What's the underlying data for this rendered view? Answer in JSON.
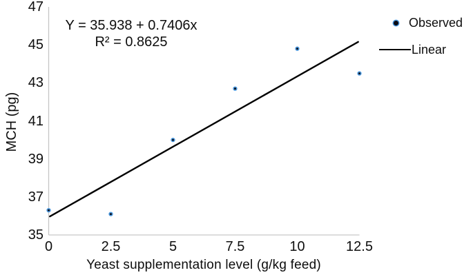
{
  "chart_data": {
    "type": "scatter",
    "title": "",
    "xlabel": "Yeast supplementation level (g/kg feed)",
    "ylabel": "MCH (pg)",
    "x": [
      0,
      2.5,
      5,
      7.5,
      10,
      12.5
    ],
    "x_tick_labels": [
      "0",
      "2.5",
      "5",
      "7.5",
      "10",
      "12.5"
    ],
    "y_ticks": [
      35,
      37,
      39,
      41,
      43,
      45,
      47
    ],
    "xlim": [
      0,
      12.5
    ],
    "ylim": [
      35,
      47
    ],
    "grid": false,
    "legend_position": "top-right",
    "series": [
      {
        "name": "Observed",
        "type": "scatter",
        "values": [
          36.3,
          36.1,
          40.0,
          42.7,
          44.8,
          43.5
        ]
      },
      {
        "name": "Linear",
        "type": "line",
        "intercept": 35.938,
        "slope": 0.7406,
        "x_start": 0.05,
        "x_end": 12.45
      }
    ],
    "annotation": {
      "line1": "Y = 35.938 + 0.7406x",
      "line2": "R² = 0.8625"
    }
  },
  "legend": {
    "items": [
      {
        "label": "Observed",
        "marker": "dot-icon"
      },
      {
        "label": "Linear",
        "marker": "line-sample-icon"
      }
    ]
  },
  "colors": {
    "marker_fill": "#0a0a12",
    "marker_stroke": "#4a97dd",
    "regression_line": "#000000",
    "axis": "#c6c6c6",
    "text": "#0d0d0d",
    "background": "#ffffff"
  }
}
